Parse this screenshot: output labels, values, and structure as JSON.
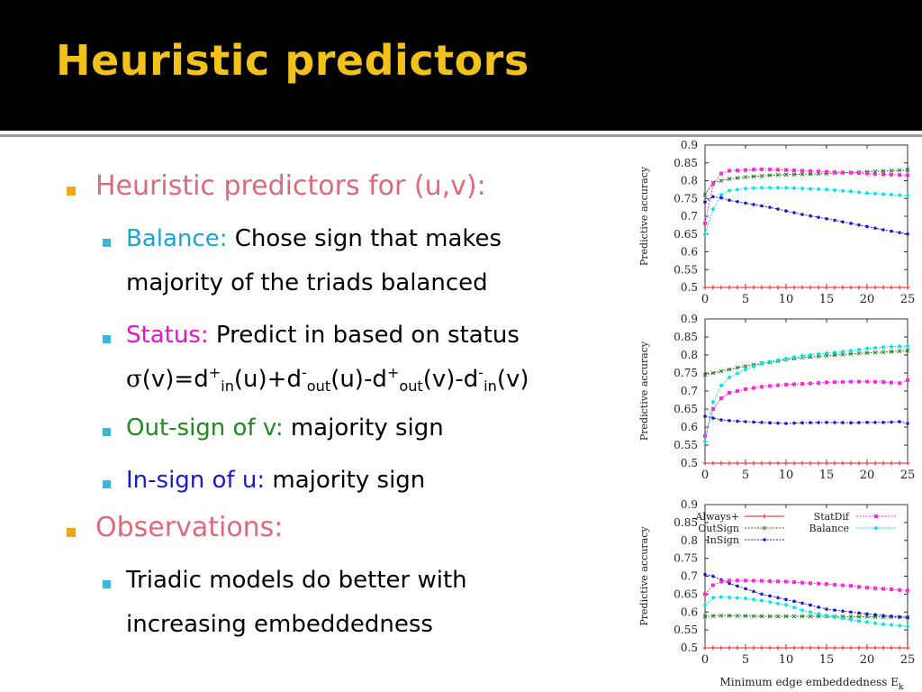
{
  "title": "Heuristic predictors",
  "bullets": {
    "b1": "Heuristic predictors for (u,v):",
    "balance_key": "Balance:",
    "balance_line1": "Chose sign that makes",
    "balance_line2": "majority of the triads balanced",
    "status_key": "Status:",
    "status_text": "Predict in based on status",
    "formula": {
      "sigma": "σ",
      "p1": "(v)=d",
      "sup1": "+",
      "sub1": "in",
      "p2": "(u)+d",
      "sup2": "-",
      "sub2": "out",
      "p3": "(u)-d",
      "sup3": "+",
      "sub3": "out",
      "p4": "(v)-d",
      "sup4": "-",
      "sub4": "in",
      "p5": "(v)"
    },
    "outsign_key": "Out-sign of v:",
    "outsign_text": "majority sign",
    "insign_key": "In-sign of u:",
    "insign_text": "majority sign",
    "b2": "Observations:",
    "obs_line1": "Triadic models do better with",
    "obs_line2": "increasing embeddedness"
  },
  "colors": {
    "title": "#f2c21a",
    "heading": "#dd6a7a",
    "balance": "#1aa3d6",
    "status": "#e815c8",
    "outsign": "#1f8a1f",
    "insign": "#1a1acd"
  },
  "chart_data": [
    {
      "type": "line",
      "ylabel": "Predictive accuracy",
      "xlabel": "",
      "xlim": [
        0,
        25
      ],
      "ylim": [
        0.5,
        0.9
      ],
      "xticks": [
        0,
        5,
        10,
        15,
        20,
        25
      ],
      "yticks": [
        0.5,
        0.55,
        0.6,
        0.65,
        0.7,
        0.75,
        0.8,
        0.85,
        0.9
      ],
      "grid": false,
      "series": [
        {
          "color": "#e41a1c",
          "marker": "+",
          "x": [
            0,
            25
          ],
          "y": [
            0.5,
            0.5
          ]
        },
        {
          "color": "#1f7a1f",
          "marker": "x",
          "x": [
            0,
            1,
            2,
            3,
            5,
            8,
            10,
            12,
            15,
            18,
            20,
            22,
            25
          ],
          "y": [
            0.76,
            0.795,
            0.8,
            0.805,
            0.81,
            0.815,
            0.817,
            0.818,
            0.82,
            0.823,
            0.825,
            0.827,
            0.83
          ]
        },
        {
          "color": "#ff2bd6",
          "marker": "s",
          "x": [
            0,
            1,
            2,
            3,
            5,
            7,
            10,
            12,
            15,
            18,
            20,
            22,
            25
          ],
          "y": [
            0.68,
            0.79,
            0.82,
            0.828,
            0.83,
            0.832,
            0.83,
            0.828,
            0.825,
            0.822,
            0.82,
            0.818,
            0.815
          ]
        },
        {
          "color": "#00e5e5",
          "marker": "d",
          "x": [
            0,
            1,
            2,
            3,
            5,
            7,
            10,
            12,
            15,
            18,
            20,
            22,
            25
          ],
          "y": [
            0.65,
            0.72,
            0.76,
            0.772,
            0.778,
            0.78,
            0.78,
            0.778,
            0.775,
            0.77,
            0.765,
            0.762,
            0.758
          ]
        },
        {
          "color": "#1a1acd",
          "marker": "o",
          "x": [
            0,
            1,
            2,
            3,
            5,
            8,
            10,
            12,
            15,
            18,
            20,
            22,
            25
          ],
          "y": [
            0.74,
            0.755,
            0.752,
            0.745,
            0.737,
            0.725,
            0.715,
            0.705,
            0.693,
            0.68,
            0.671,
            0.662,
            0.65
          ]
        }
      ]
    },
    {
      "type": "line",
      "ylabel": "Predictive accuracy",
      "xlabel": "",
      "xlim": [
        0,
        25
      ],
      "ylim": [
        0.5,
        0.9
      ],
      "xticks": [
        0,
        5,
        10,
        15,
        20,
        25
      ],
      "yticks": [
        0.5,
        0.55,
        0.6,
        0.65,
        0.7,
        0.75,
        0.8,
        0.85,
        0.9
      ],
      "grid": false,
      "series": [
        {
          "color": "#e41a1c",
          "marker": "+",
          "x": [
            0,
            25
          ],
          "y": [
            0.5,
            0.5
          ]
        },
        {
          "color": "#1f7a1f",
          "marker": "x",
          "x": [
            0,
            2,
            4,
            6,
            8,
            10,
            12,
            15,
            18,
            20,
            22,
            25
          ],
          "y": [
            0.745,
            0.755,
            0.765,
            0.773,
            0.78,
            0.787,
            0.793,
            0.798,
            0.803,
            0.806,
            0.808,
            0.812
          ]
        },
        {
          "color": "#ff2bd6",
          "marker": "s",
          "x": [
            0,
            1,
            2,
            3,
            5,
            7,
            10,
            12,
            15,
            18,
            20,
            22,
            24,
            25
          ],
          "y": [
            0.575,
            0.65,
            0.68,
            0.695,
            0.705,
            0.712,
            0.718,
            0.72,
            0.724,
            0.726,
            0.726,
            0.725,
            0.722,
            0.73
          ]
        },
        {
          "color": "#00e5e5",
          "marker": "d",
          "x": [
            0,
            1,
            2,
            3,
            5,
            7,
            10,
            12,
            15,
            18,
            20,
            22,
            25
          ],
          "y": [
            0.56,
            0.67,
            0.715,
            0.738,
            0.76,
            0.777,
            0.79,
            0.798,
            0.805,
            0.812,
            0.818,
            0.822,
            0.825
          ]
        },
        {
          "color": "#1a1acd",
          "marker": "o",
          "x": [
            0,
            1,
            2,
            3,
            5,
            8,
            10,
            12,
            15,
            18,
            20,
            22,
            24,
            25
          ],
          "y": [
            0.63,
            0.625,
            0.62,
            0.618,
            0.615,
            0.612,
            0.61,
            0.612,
            0.613,
            0.612,
            0.613,
            0.613,
            0.615,
            0.61
          ]
        }
      ]
    },
    {
      "type": "line",
      "ylabel": "Predictive accuracy",
      "xlabel": "Minimum edge embeddedness E",
      "xlabel_sub": "k",
      "xlim": [
        0,
        25
      ],
      "ylim": [
        0.5,
        0.9
      ],
      "xticks": [
        0,
        5,
        10,
        15,
        20,
        25
      ],
      "yticks": [
        0.5,
        0.55,
        0.6,
        0.65,
        0.7,
        0.75,
        0.8,
        0.85,
        0.9
      ],
      "grid": false,
      "legend_placement": "top",
      "series": [
        {
          "name": "Always+",
          "color": "#e41a1c",
          "marker": "+",
          "x": [
            0,
            25
          ],
          "y": [
            0.5,
            0.5
          ]
        },
        {
          "name": "OutSign",
          "color": "#1f7a1f",
          "marker": "x",
          "x": [
            0,
            2,
            5,
            8,
            10,
            12,
            15,
            18,
            20,
            22,
            25
          ],
          "y": [
            0.588,
            0.59,
            0.589,
            0.588,
            0.588,
            0.588,
            0.588,
            0.587,
            0.587,
            0.586,
            0.585
          ]
        },
        {
          "name": "InSign",
          "color": "#1a1acd",
          "marker": "o",
          "x": [
            0,
            1,
            2,
            3,
            5,
            7,
            10,
            12,
            15,
            18,
            20,
            22,
            25
          ],
          "y": [
            0.705,
            0.7,
            0.69,
            0.68,
            0.665,
            0.65,
            0.635,
            0.625,
            0.608,
            0.6,
            0.595,
            0.59,
            0.585
          ]
        },
        {
          "name": "StatDif",
          "color": "#ff2bd6",
          "marker": "s",
          "x": [
            0,
            1,
            2,
            3,
            5,
            7,
            10,
            12,
            15,
            18,
            20,
            22,
            25
          ],
          "y": [
            0.65,
            0.675,
            0.685,
            0.688,
            0.688,
            0.687,
            0.685,
            0.682,
            0.678,
            0.673,
            0.668,
            0.665,
            0.66
          ]
        },
        {
          "name": "Balance",
          "color": "#00e5e5",
          "marker": "d",
          "x": [
            0,
            1,
            2,
            3,
            5,
            7,
            10,
            12,
            15,
            18,
            20,
            22,
            25
          ],
          "y": [
            0.62,
            0.64,
            0.642,
            0.641,
            0.638,
            0.632,
            0.62,
            0.605,
            0.59,
            0.578,
            0.572,
            0.566,
            0.56
          ]
        }
      ]
    }
  ]
}
